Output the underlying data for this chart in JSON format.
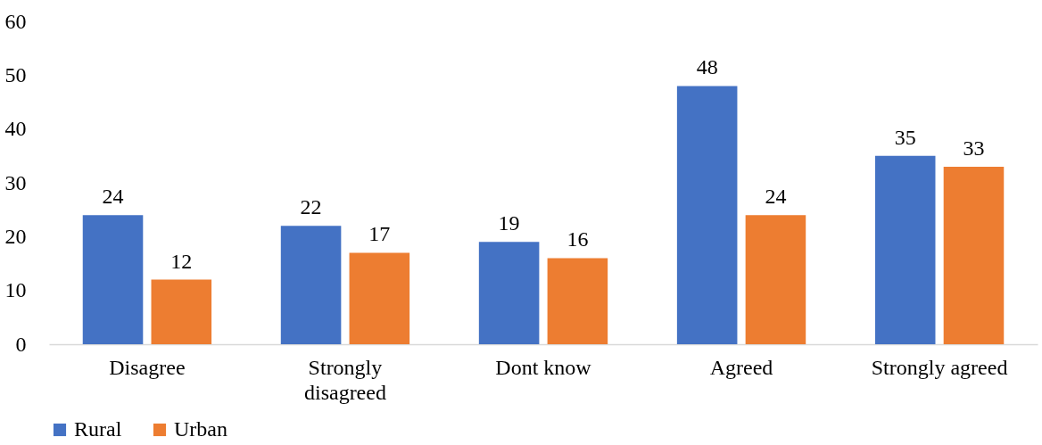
{
  "chart_data": {
    "type": "bar",
    "categories": [
      "Disagree",
      "Strongly disagreed",
      "Dont know",
      "Agreed",
      "Strongly agreed"
    ],
    "series": [
      {
        "name": "Rural",
        "color": "#4472c4",
        "values": [
          24,
          22,
          19,
          48,
          35
        ]
      },
      {
        "name": "Urban",
        "color": "#ed7d31",
        "values": [
          12,
          17,
          16,
          24,
          33
        ]
      }
    ],
    "ylim": [
      0,
      60
    ],
    "yticks": [
      0,
      10,
      20,
      30,
      40,
      50,
      60
    ],
    "grid": false,
    "legend": "bottom",
    "data_labels": true
  }
}
